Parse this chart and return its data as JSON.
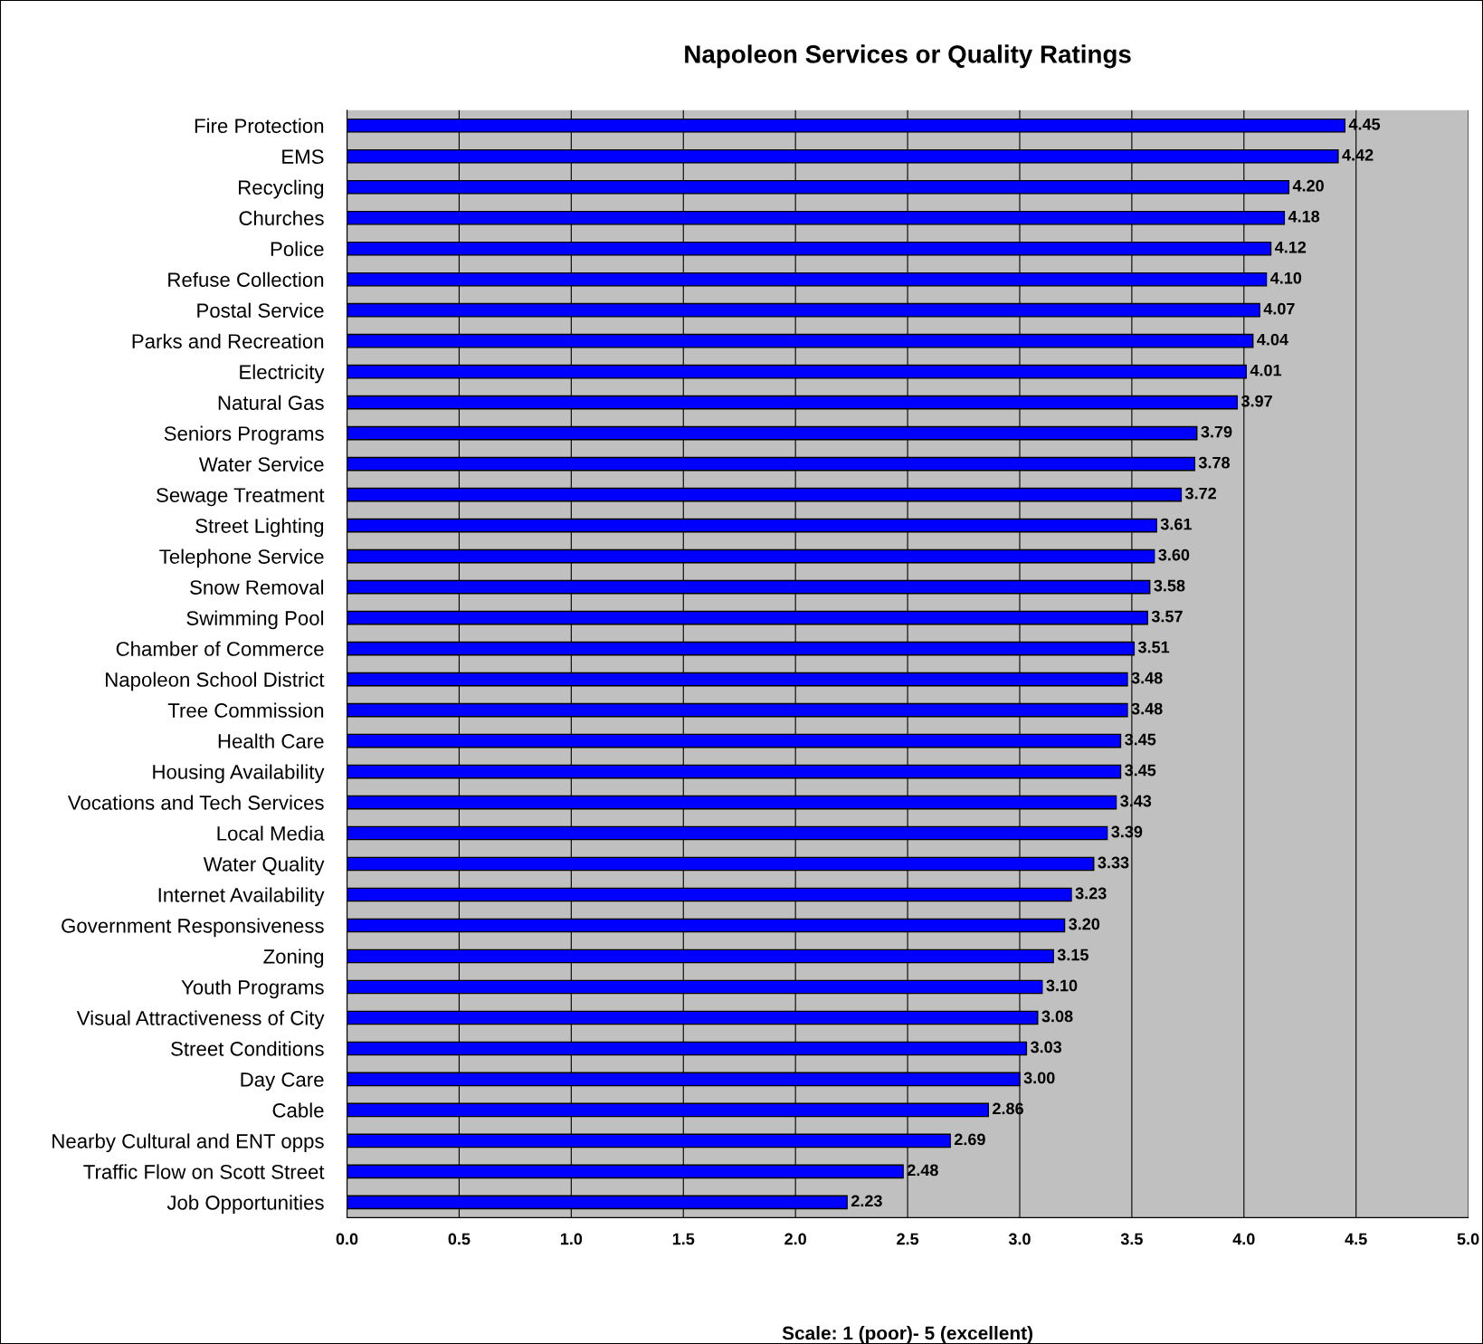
{
  "chart_data": {
    "type": "bar",
    "orientation": "horizontal",
    "title": "Napoleon Services or Quality Ratings",
    "xlabel": "Scale: 1 (poor)- 5 (excellent)",
    "categories": [
      "Fire Protection",
      "EMS",
      "Recycling",
      "Churches",
      "Police",
      "Refuse Collection",
      "Postal Service",
      "Parks and Recreation",
      "Electricity",
      "Natural Gas",
      "Seniors Programs",
      "Water Service",
      "Sewage Treatment",
      "Street Lighting",
      "Telephone Service",
      "Snow Removal",
      "Swimming Pool",
      "Chamber of Commerce",
      "Napoleon School District",
      "Tree Commission",
      "Health Care",
      "Housing Availability",
      "Vocations and Tech Services",
      "Local Media",
      "Water Quality",
      "Internet Availability",
      "Government Responsiveness",
      "Zoning",
      "Youth Programs",
      "Visual Attractiveness of City",
      "Street Conditions",
      "Day Care",
      "Cable",
      "Nearby Cultural and ENT opps",
      "Traffic Flow on Scott Street",
      "Job Opportunities"
    ],
    "values": [
      4.45,
      4.42,
      4.2,
      4.18,
      4.12,
      4.1,
      4.07,
      4.04,
      4.01,
      3.97,
      3.79,
      3.78,
      3.72,
      3.61,
      3.6,
      3.58,
      3.57,
      3.51,
      3.48,
      3.48,
      3.45,
      3.45,
      3.43,
      3.39,
      3.33,
      3.23,
      3.2,
      3.15,
      3.1,
      3.08,
      3.03,
      3.0,
      2.86,
      2.69,
      2.48,
      2.23
    ],
    "value_labels": [
      "4.45",
      "4.42",
      "4.20",
      "4.18",
      "4.12",
      "4.10",
      "4.07",
      "4.04",
      "4.01",
      "3.97",
      "3.79",
      "3.78",
      "3.72",
      "3.61",
      "3.60",
      "3.58",
      "3.57",
      "3.51",
      "3.48",
      "3.48",
      "3.45",
      "3.45",
      "3.43",
      "3.39",
      "3.33",
      "3.23",
      "3.20",
      "3.15",
      "3.10",
      "3.08",
      "3.03",
      "3.00",
      "2.86",
      "2.69",
      "2.48",
      "2.23"
    ],
    "color": "#0000ff",
    "xlim": [
      0,
      5
    ],
    "xticks": [
      {
        "value": 0,
        "label": "0.0"
      },
      {
        "value": 0.5,
        "label": "0.5"
      },
      {
        "value": 1,
        "label": "1.0"
      },
      {
        "value": 1.5,
        "label": "1.5"
      },
      {
        "value": 2,
        "label": "2.0"
      },
      {
        "value": 2.5,
        "label": "2.5"
      },
      {
        "value": 3,
        "label": "3.0"
      },
      {
        "value": 3.5,
        "label": "3.5"
      },
      {
        "value": 4,
        "label": "4.0"
      },
      {
        "value": 4.5,
        "label": "4.5"
      },
      {
        "value": 5,
        "label": "5.0"
      }
    ],
    "grid": "x",
    "legend": false
  }
}
